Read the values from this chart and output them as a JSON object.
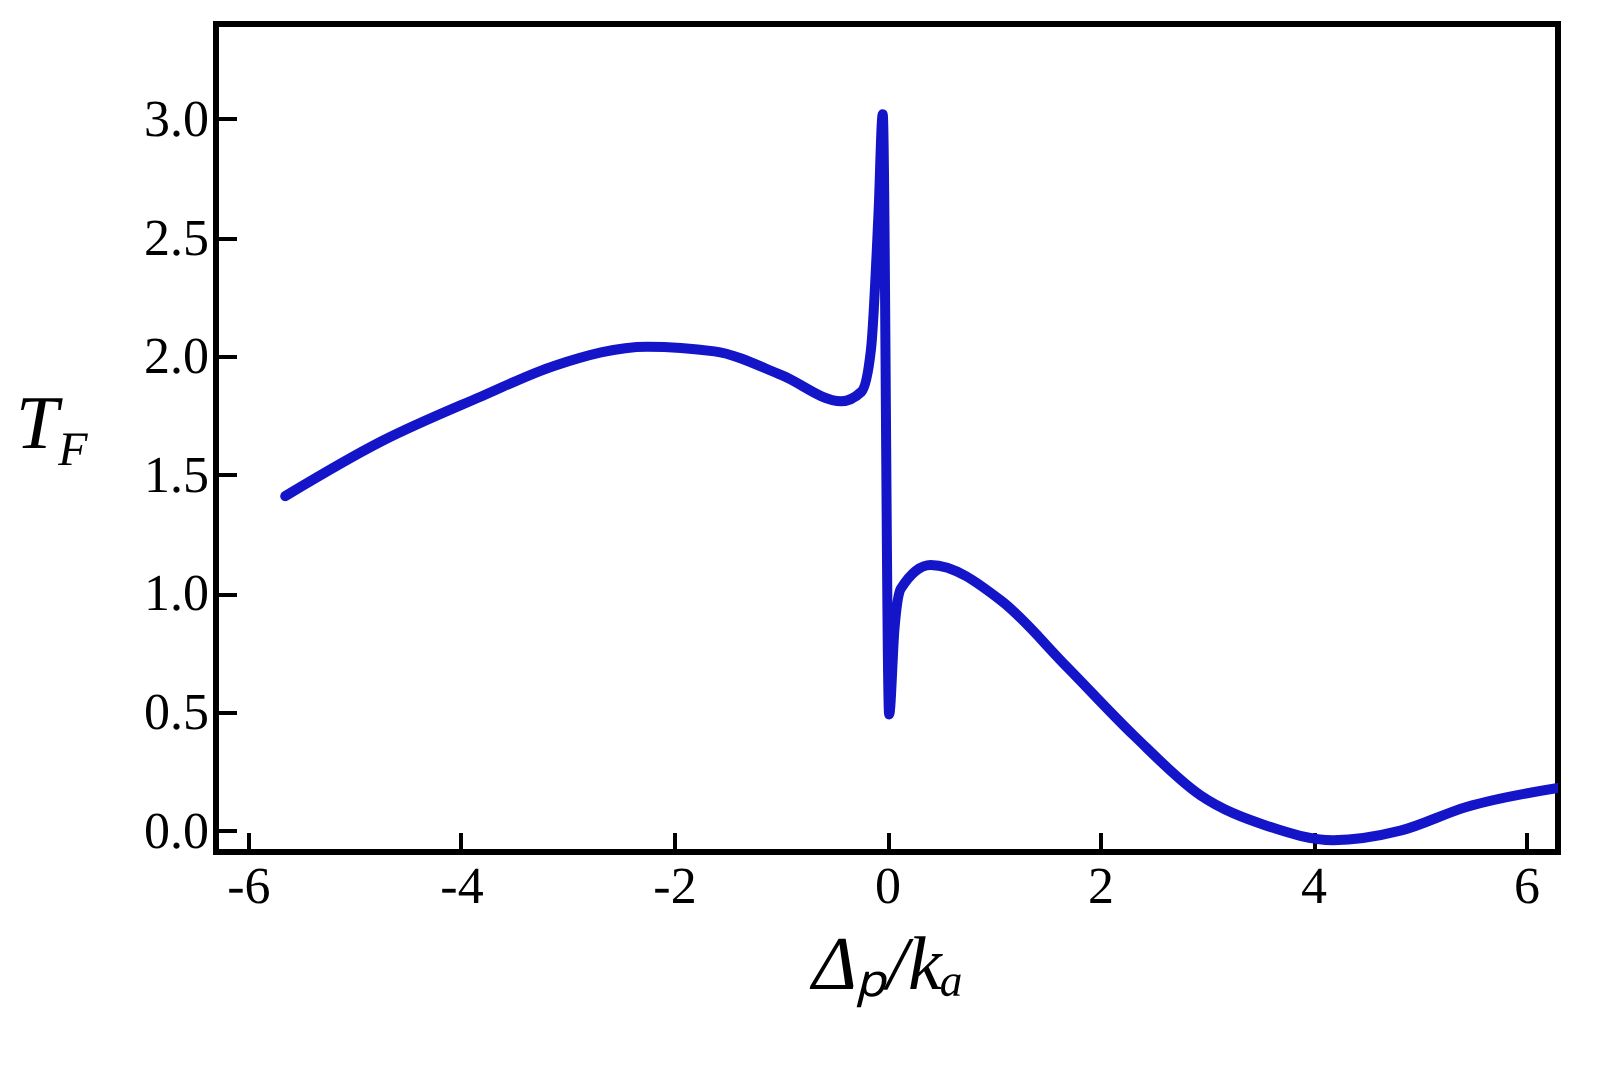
{
  "chart_data": {
    "type": "line",
    "xlabel": "Δₚ/kₐ",
    "ylabel": "T$_{F}$",
    "x": [
      -5.65,
      -4.75,
      -3.81,
      -3.12,
      -2.25,
      -1.62,
      -0.99,
      -0.43,
      -0.24,
      -0.15,
      -0.08,
      -0.04,
      0.02,
      0.07,
      0.13,
      0.41,
      1.07,
      1.69,
      2.32,
      2.94,
      3.57,
      4.19,
      4.82,
      5.44,
      6.3
    ],
    "series": [
      {
        "color": "#1414c8",
        "values": [
          1.41,
          1.64,
          1.83,
          1.96,
          2.04,
          2.02,
          1.92,
          1.81,
          1.85,
          2.03,
          2.6,
          3.02,
          0.49,
          0.85,
          1.02,
          1.12,
          0.97,
          0.69,
          0.4,
          0.15,
          0.02,
          -0.04,
          0.0,
          0.1,
          0.18
        ]
      }
    ],
    "xlim": [
      -6.3,
      6.3
    ],
    "xticks": [
      -6,
      -4,
      -2,
      0,
      2,
      4,
      6
    ],
    "ylim": [
      -0.09,
      3.4
    ],
    "yticks": [
      {
        "value": 0,
        "label": "0.0"
      },
      {
        "value": 0.5,
        "label": "0.5"
      },
      {
        "value": 1,
        "label": "1.0"
      },
      {
        "value": 1.5,
        "label": "1.5"
      },
      {
        "value": 2,
        "label": "2.0"
      },
      {
        "value": 2.5,
        "label": "2.5"
      },
      {
        "value": 3,
        "label": "3.0"
      }
    ],
    "grid": false,
    "line_style": "solid",
    "marker": "none"
  }
}
